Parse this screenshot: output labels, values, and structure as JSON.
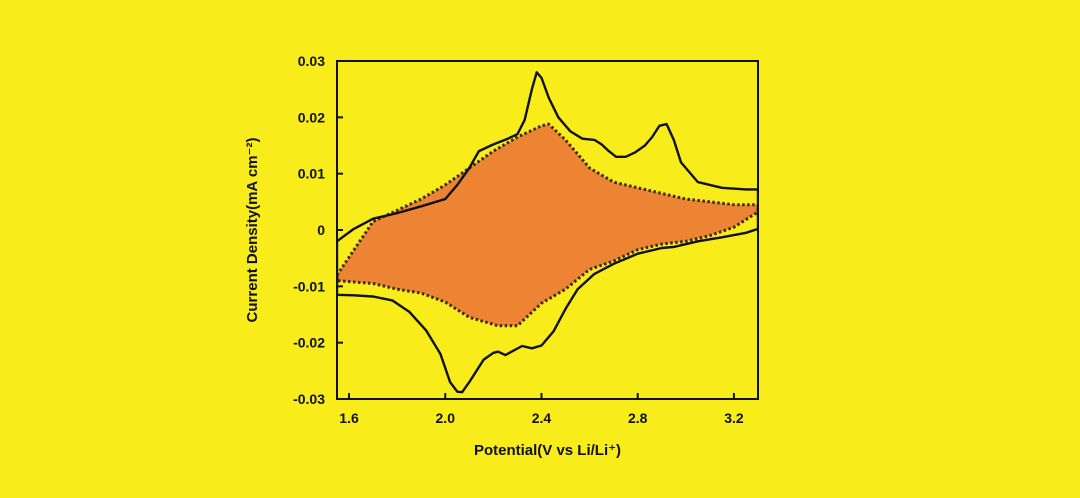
{
  "background_color": "#f9ec1b",
  "chart_data": {
    "type": "line",
    "title": "",
    "xlabel": "Potential(V vs Li/Li⁺)",
    "ylabel": "Current Density(mA cm⁻²)",
    "xlim": [
      1.55,
      3.3
    ],
    "ylim": [
      -0.03,
      0.03
    ],
    "grid": false,
    "x_ticks": [
      1.6,
      2.0,
      2.4,
      2.8,
      3.2
    ],
    "x_tick_labels": [
      "1.6",
      "2.0",
      "2.4",
      "2.8",
      "3.2"
    ],
    "y_ticks": [
      0.03,
      0.02,
      0.01,
      0,
      -0.01,
      -0.02,
      -0.03
    ],
    "y_tick_labels": [
      "0.03",
      "0.02",
      "0.01",
      "0",
      "-0.01",
      "-0.02",
      "-0.03"
    ],
    "series": [
      {
        "style": "solid",
        "color": "#111111",
        "fill": "none",
        "x": [
          1.55,
          1.62,
          1.7,
          1.8,
          1.9,
          2.0,
          2.05,
          2.1,
          2.14,
          2.2,
          2.26,
          2.3,
          2.33,
          2.36,
          2.38,
          2.4,
          2.43,
          2.47,
          2.52,
          2.57,
          2.62,
          2.65,
          2.68,
          2.71,
          2.75,
          2.79,
          2.83,
          2.86,
          2.89,
          2.92,
          2.95,
          2.98,
          3.05,
          3.15,
          3.25,
          3.3,
          3.3,
          3.25,
          3.15,
          3.05,
          2.95,
          2.9,
          2.8,
          2.7,
          2.62,
          2.55,
          2.5,
          2.45,
          2.4,
          2.36,
          2.32,
          2.28,
          2.25,
          2.22,
          2.2,
          2.16,
          2.13,
          2.1,
          2.07,
          2.05,
          2.02,
          1.98,
          1.92,
          1.85,
          1.78,
          1.7,
          1.62,
          1.55
        ],
        "y": [
          -0.002,
          0.0002,
          0.002,
          0.003,
          0.0042,
          0.0055,
          0.008,
          0.011,
          0.014,
          0.0152,
          0.0162,
          0.017,
          0.0195,
          0.025,
          0.028,
          0.027,
          0.0235,
          0.02,
          0.0175,
          0.0162,
          0.016,
          0.0152,
          0.014,
          0.013,
          0.013,
          0.0138,
          0.015,
          0.0165,
          0.0185,
          0.0188,
          0.016,
          0.012,
          0.0085,
          0.0075,
          0.0072,
          0.0072,
          0.0002,
          -0.0005,
          -0.0013,
          -0.002,
          -0.003,
          -0.0032,
          -0.0042,
          -0.006,
          -0.0078,
          -0.0105,
          -0.014,
          -0.018,
          -0.0205,
          -0.021,
          -0.0206,
          -0.0215,
          -0.0222,
          -0.0216,
          -0.0218,
          -0.023,
          -0.025,
          -0.027,
          -0.0288,
          -0.0287,
          -0.027,
          -0.022,
          -0.0178,
          -0.0145,
          -0.0125,
          -0.0118,
          -0.0116,
          -0.0115
        ]
      },
      {
        "style": "dotted",
        "color": "#3a2a1a",
        "fill": "#ec8434",
        "x": [
          1.55,
          1.7,
          1.8,
          1.9,
          2.0,
          2.1,
          2.2,
          2.3,
          2.4,
          2.43,
          2.5,
          2.6,
          2.7,
          2.8,
          2.9,
          3.0,
          3.1,
          3.2,
          3.3,
          3.3,
          3.2,
          3.1,
          3.0,
          2.9,
          2.8,
          2.7,
          2.6,
          2.5,
          2.4,
          2.3,
          2.22,
          2.1,
          2.0,
          1.9,
          1.8,
          1.7,
          1.55
        ],
        "y": [
          -0.008,
          0.0015,
          0.0035,
          0.0055,
          0.008,
          0.011,
          0.014,
          0.0165,
          0.0185,
          0.0188,
          0.016,
          0.011,
          0.0085,
          0.0075,
          0.0065,
          0.0055,
          0.005,
          0.0045,
          0.0045,
          0.0032,
          0.0005,
          -0.001,
          -0.002,
          -0.0025,
          -0.0035,
          -0.0055,
          -0.007,
          -0.0105,
          -0.013,
          -0.017,
          -0.017,
          -0.0155,
          -0.0128,
          -0.0112,
          -0.0105,
          -0.0095,
          -0.009
        ]
      }
    ]
  }
}
